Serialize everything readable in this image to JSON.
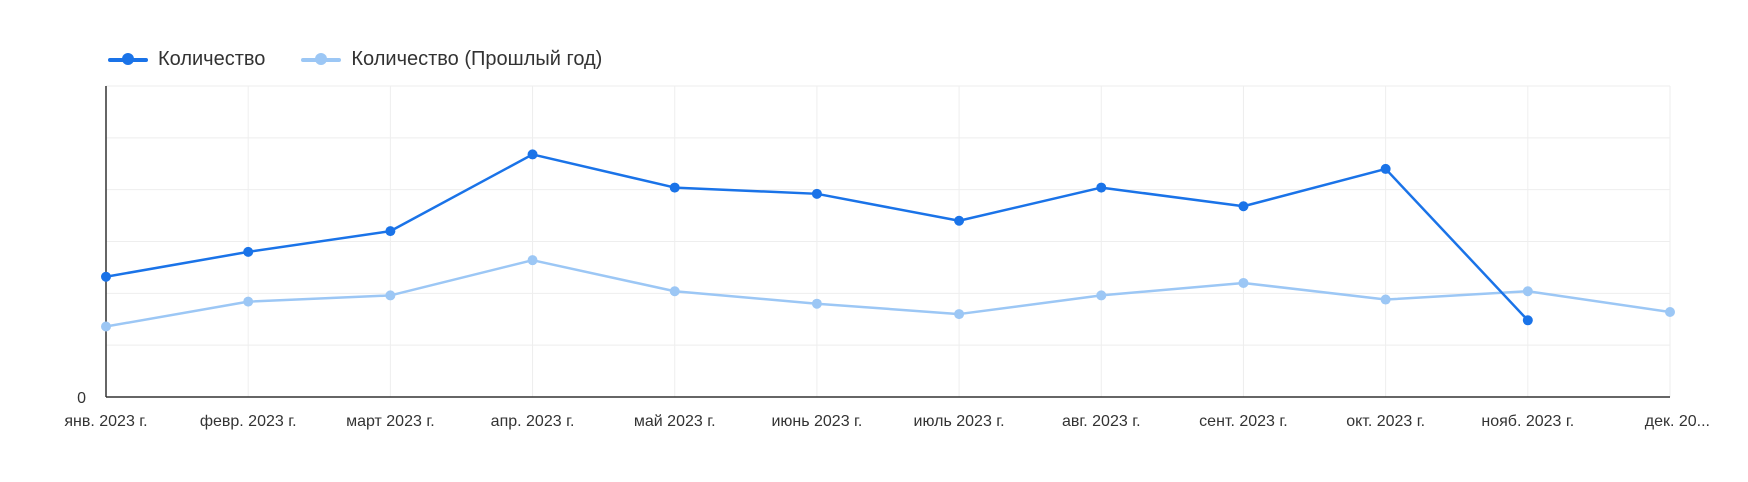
{
  "chart_data": {
    "type": "line",
    "categories": [
      "янв. 2023 г.",
      "февр. 2023 г.",
      "март 2023 г.",
      "апр. 2023 г.",
      "май 2023 г.",
      "июнь 2023 г.",
      "июль 2023 г.",
      "авг. 2023 г.",
      "сент. 2023 г.",
      "окт. 2023 г.",
      "нояб. 2023 г.",
      "дек. 20..."
    ],
    "series": [
      {
        "name": "Количество",
        "color": "#1a73e8",
        "values": [
          58,
          70,
          80,
          117,
          101,
          98,
          85,
          101,
          92,
          110,
          37,
          null
        ]
      },
      {
        "name": "Количество (Прошлый год)",
        "color": "#9cc7f5",
        "values": [
          34,
          46,
          49,
          66,
          51,
          45,
          40,
          49,
          55,
          47,
          51,
          41
        ]
      }
    ],
    "ylim": [
      0,
      150
    ],
    "yticks": [
      0,
      50,
      100,
      150
    ],
    "ytick_labels": [
      "0",
      "",
      "",
      ""
    ],
    "grid": true,
    "legend": "top-left",
    "xlabel": "",
    "ylabel": ""
  }
}
